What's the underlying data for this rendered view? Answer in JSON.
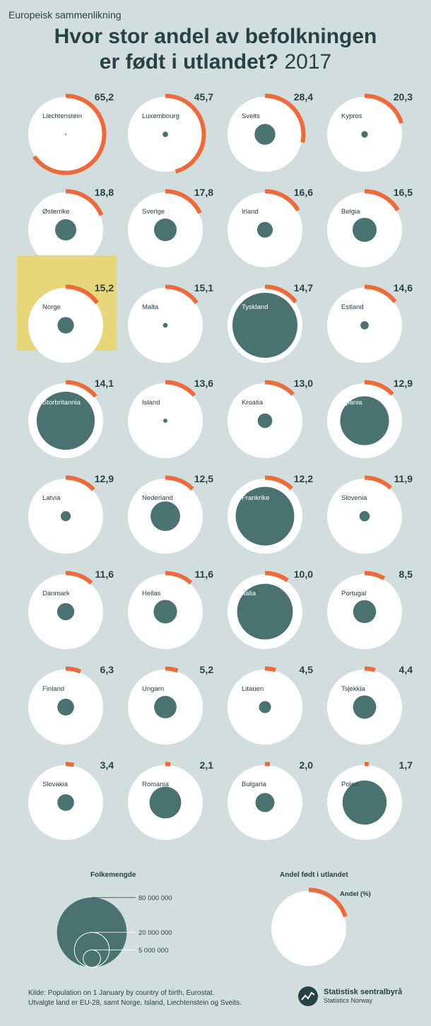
{
  "header": {
    "kicker": "Europeisk sammenlikning",
    "title_line1": "Hvor stor andel av befolkningen",
    "title_line2": "er født i utlandet?",
    "year": "2017"
  },
  "colors": {
    "background": "#d2dedd",
    "circle": "#ffffff",
    "population": "#4a7271",
    "share_arc": "#ee6a3a",
    "highlight": "#e8d77a",
    "text": "#274247"
  },
  "chart_data": {
    "type": "proportional-symbol-grid",
    "series": [
      {
        "name": "Andel født i utlandet",
        "unit": "%"
      },
      {
        "name": "Folkemengde"
      }
    ],
    "highlight": "Norge",
    "countries": [
      {
        "name": "Liechtenstein",
        "share": "65,2",
        "share_value": 65.2,
        "population": 38000
      },
      {
        "name": "Luxembourg",
        "share": "45,7",
        "share_value": 45.7,
        "population": 590000
      },
      {
        "name": "Sveits",
        "share": "28,4",
        "share_value": 28.4,
        "population": 8420000
      },
      {
        "name": "Kypros",
        "share": "20,3",
        "share_value": 20.3,
        "population": 855000
      },
      {
        "name": "Østerrike",
        "share": "18,8",
        "share_value": 18.8,
        "population": 8770000
      },
      {
        "name": "Sverige",
        "share": "17,8",
        "share_value": 17.8,
        "population": 9995000
      },
      {
        "name": "Irland",
        "share": "16,6",
        "share_value": 16.6,
        "population": 4780000
      },
      {
        "name": "Belgia",
        "share": "16,5",
        "share_value": 16.5,
        "population": 11350000
      },
      {
        "name": "Norge",
        "share": "15,2",
        "share_value": 15.2,
        "population": 5260000
      },
      {
        "name": "Malta",
        "share": "15,1",
        "share_value": 15.1,
        "population": 460000
      },
      {
        "name": "Tyskland",
        "share": "14,7",
        "share_value": 14.7,
        "population": 82520000
      },
      {
        "name": "Estland",
        "share": "14,6",
        "share_value": 14.6,
        "population": 1315000
      },
      {
        "name": "Storbritannia",
        "share": "14,1",
        "share_value": 14.1,
        "population": 65810000
      },
      {
        "name": "Island",
        "share": "13,6",
        "share_value": 13.6,
        "population": 338000
      },
      {
        "name": "Kroatia",
        "share": "13,0",
        "share_value": 13.0,
        "population": 4150000
      },
      {
        "name": "Spania",
        "share": "12,9",
        "share_value": 12.9,
        "population": 46530000
      },
      {
        "name": "Latvia",
        "share": "12,9",
        "share_value": 12.9,
        "population": 1950000
      },
      {
        "name": "Nederland",
        "share": "12,5",
        "share_value": 12.5,
        "population": 17080000
      },
      {
        "name": "Frankrike",
        "share": "12,2",
        "share_value": 12.2,
        "population": 66990000
      },
      {
        "name": "Slovenia",
        "share": "11,9",
        "share_value": 11.9,
        "population": 2065000
      },
      {
        "name": "Danmark",
        "share": "11,6",
        "share_value": 11.6,
        "population": 5750000
      },
      {
        "name": "Hellas",
        "share": "11,6",
        "share_value": 11.6,
        "population": 10770000
      },
      {
        "name": "Italia",
        "share": "10,0",
        "share_value": 10.0,
        "population": 60590000
      },
      {
        "name": "Portugal",
        "share": "8,5",
        "share_value": 8.5,
        "population": 10310000
      },
      {
        "name": "Finland",
        "share": "6,3",
        "share_value": 6.3,
        "population": 5500000
      },
      {
        "name": "Ungarn",
        "share": "5,2",
        "share_value": 5.2,
        "population": 9800000
      },
      {
        "name": "Litauen",
        "share": "4,5",
        "share_value": 4.5,
        "population": 2850000
      },
      {
        "name": "Tsjekkia",
        "share": "4,4",
        "share_value": 4.4,
        "population": 10580000
      },
      {
        "name": "Slovakia",
        "share": "3,4",
        "share_value": 3.4,
        "population": 5440000
      },
      {
        "name": "Romania",
        "share": "2,1",
        "share_value": 2.1,
        "population": 19640000
      },
      {
        "name": "Bulgaria",
        "share": "2,0",
        "share_value": 2.0,
        "population": 7100000
      },
      {
        "name": "Polen",
        "share": "1,7",
        "share_value": 1.7,
        "population": 37970000
      }
    ]
  },
  "legend": {
    "population_title": "Folkemengde",
    "population_sizes": [
      {
        "value": 80000000,
        "label": "80 000 000"
      },
      {
        "value": 20000000,
        "label": "20 000 000"
      },
      {
        "value": 5000000,
        "label": "5 000 000"
      }
    ],
    "share_title": "Andel født i utlandet",
    "share_example_value": 20,
    "share_label": "Andel (%)"
  },
  "footer": {
    "source_line1": "Kilde: Population on 1 January by country of birth, Eurostat.",
    "source_line2": "Utvalgte land er EU-28, samt Norge, Island, Liechtenstein og Sveits.",
    "logo_name": "Statistisk sentralbyrå",
    "logo_sub": "Statistics Norway"
  }
}
